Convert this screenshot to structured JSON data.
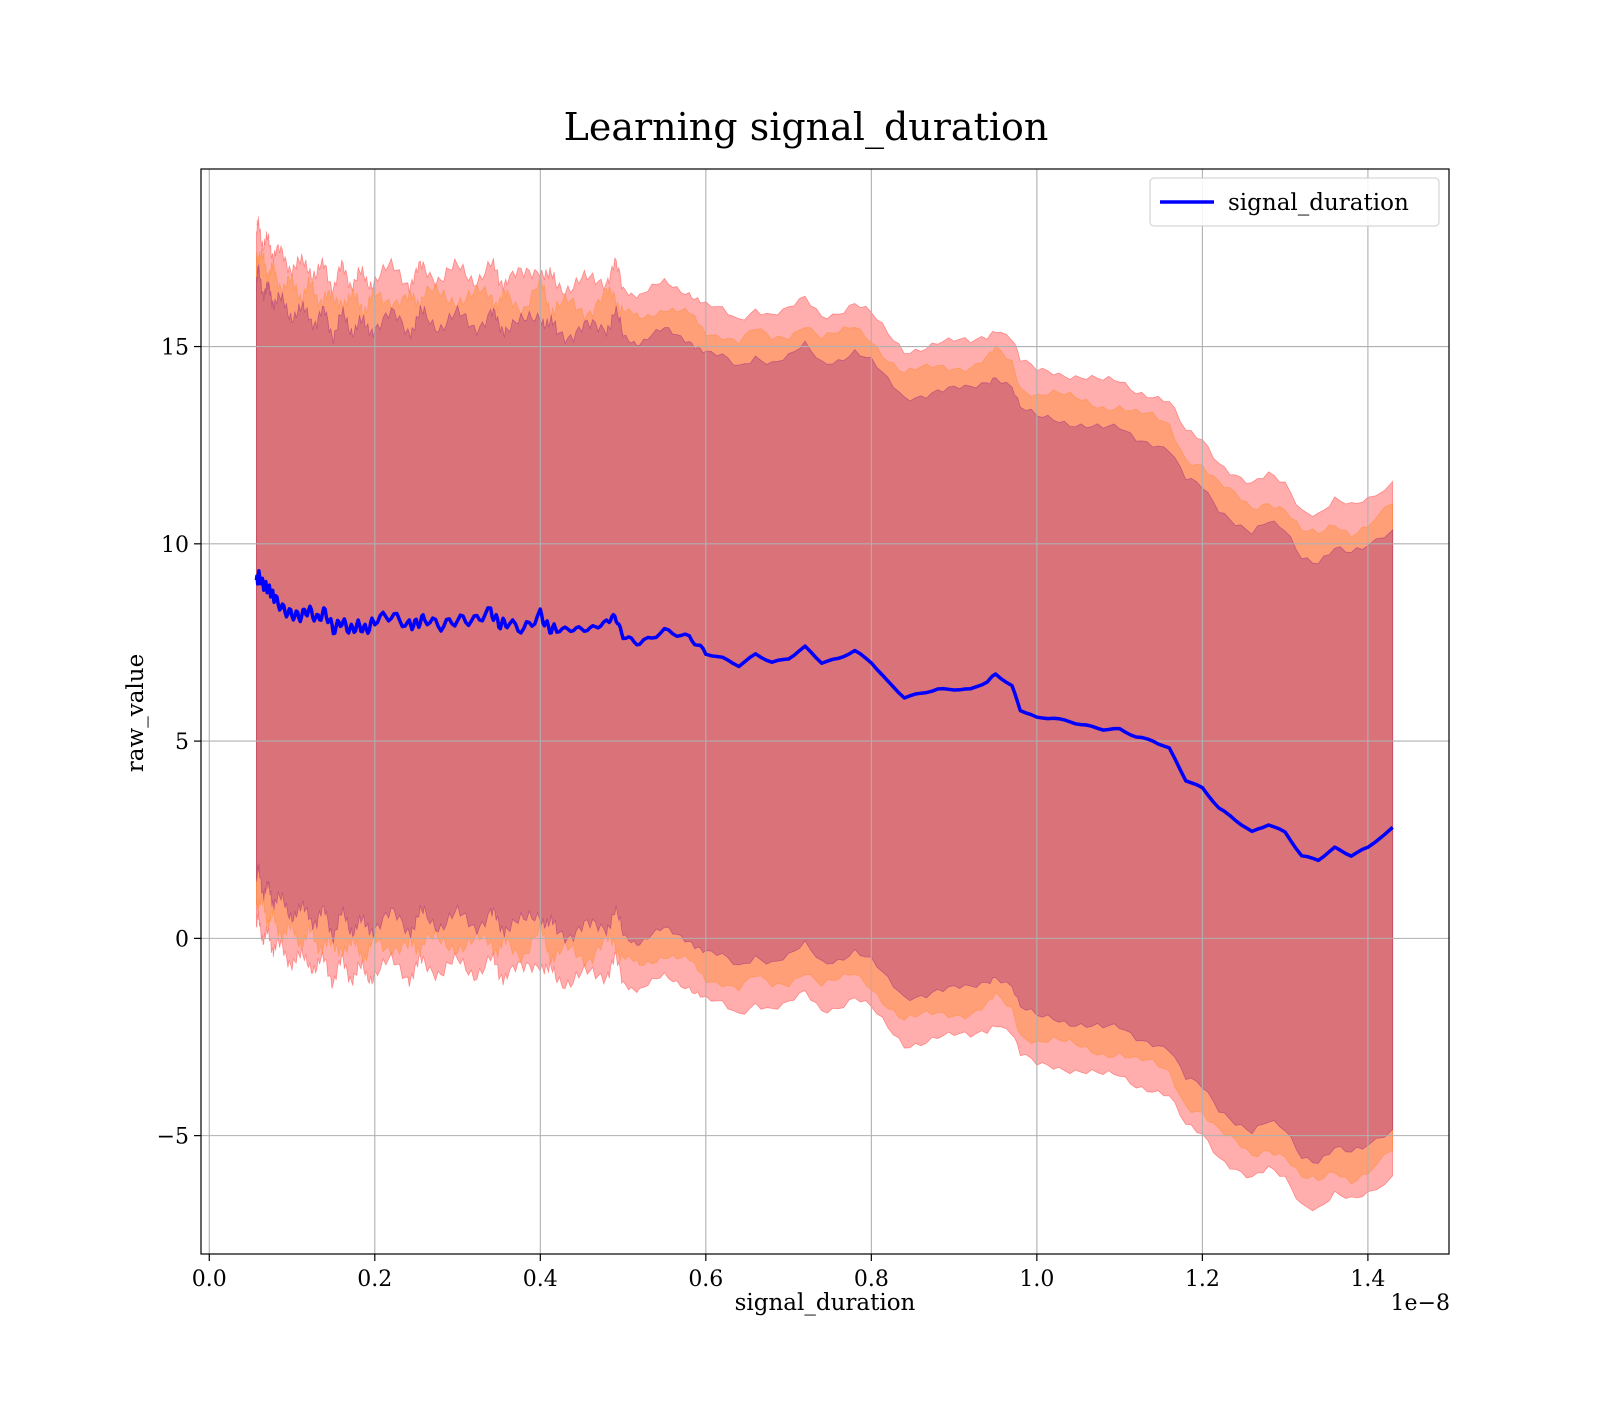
{
  "chart_data": {
    "type": "line",
    "title": "Learning signal_duration",
    "xlabel": "signal_duration",
    "ylabel": "raw_value",
    "x_offset_label": "1e−8",
    "xlim": [
      -0.01,
      1.498
    ],
    "ylim": [
      -8.0,
      19.5
    ],
    "x_scale": "1e-8",
    "x_ticks": [
      0.0,
      0.2,
      0.4,
      0.6,
      0.8,
      1.0,
      1.2,
      1.4
    ],
    "x_tick_labels": [
      "0.0",
      "0.2",
      "0.4",
      "0.6",
      "0.8",
      "1.0",
      "1.2",
      "1.4"
    ],
    "y_ticks": [
      -5,
      0,
      5,
      10,
      15
    ],
    "y_tick_labels": [
      "−5",
      "0",
      "5",
      "10",
      "15"
    ],
    "grid": true,
    "legend": {
      "position": "top-right",
      "entries": [
        "signal_duration"
      ]
    },
    "colors": {
      "line": "#0000ff",
      "band_outer": "#ff0000",
      "band_middle": "#ff8000",
      "band_inner": "#7a0080"
    },
    "series": [
      {
        "name": "signal_duration",
        "x": [
          0.057,
          0.06,
          0.065,
          0.07,
          0.075,
          0.08,
          0.09,
          0.1,
          0.11,
          0.12,
          0.13,
          0.14,
          0.15,
          0.16,
          0.17,
          0.18,
          0.19,
          0.2,
          0.22,
          0.24,
          0.25,
          0.26,
          0.28,
          0.3,
          0.32,
          0.34,
          0.35,
          0.36,
          0.38,
          0.4,
          0.41,
          0.42,
          0.44,
          0.46,
          0.48,
          0.49,
          0.5,
          0.52,
          0.55,
          0.58,
          0.6,
          0.62,
          0.64,
          0.66,
          0.68,
          0.7,
          0.72,
          0.74,
          0.76,
          0.78,
          0.8,
          0.82,
          0.84,
          0.86,
          0.88,
          0.9,
          0.92,
          0.94,
          0.95,
          0.97,
          0.98,
          1.0,
          1.02,
          1.04,
          1.06,
          1.08,
          1.1,
          1.12,
          1.14,
          1.16,
          1.18,
          1.2,
          1.22,
          1.24,
          1.26,
          1.28,
          1.3,
          1.32,
          1.34,
          1.36,
          1.38,
          1.4,
          1.43
        ],
        "values": [
          9.1,
          9.2,
          8.9,
          8.8,
          8.7,
          8.6,
          8.4,
          8.3,
          8.2,
          8.3,
          8.0,
          8.2,
          7.8,
          8.1,
          7.9,
          8.0,
          7.8,
          8.0,
          8.1,
          7.9,
          8.0,
          8.2,
          8.0,
          8.1,
          8.0,
          8.2,
          7.9,
          8.0,
          7.9,
          8.3,
          7.9,
          7.8,
          7.8,
          7.8,
          8.0,
          8.2,
          7.7,
          7.5,
          7.8,
          7.6,
          7.2,
          7.1,
          6.9,
          7.2,
          7.0,
          7.1,
          7.4,
          7.0,
          7.1,
          7.3,
          7.0,
          6.5,
          6.1,
          6.2,
          6.3,
          6.3,
          6.3,
          6.5,
          6.7,
          6.4,
          5.8,
          5.6,
          5.6,
          5.5,
          5.4,
          5.3,
          5.3,
          5.1,
          5.0,
          4.8,
          4.0,
          3.8,
          3.3,
          3.0,
          2.7,
          2.9,
          2.7,
          2.1,
          2.0,
          2.3,
          2.1,
          2.3,
          2.8
        ]
      }
    ],
    "bands": [
      {
        "name": "outer",
        "half_width": 8.8
      },
      {
        "name": "middle",
        "half_width": 8.2
      },
      {
        "name": "inner",
        "half_width": 7.6
      }
    ]
  }
}
